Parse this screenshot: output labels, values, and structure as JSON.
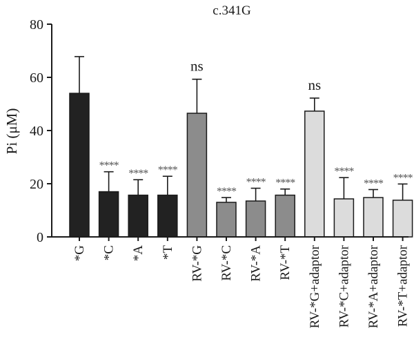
{
  "chart_data": {
    "type": "bar",
    "title": "c.341G",
    "ylabel": "Pi (μM)",
    "xlabel": "",
    "ylim": [
      0,
      80
    ],
    "yticks": [
      "0",
      "20",
      "40",
      "60",
      "80"
    ],
    "grid": false,
    "categories": [
      "*G",
      "*C",
      "*A",
      "*T",
      "RV-*G",
      "RV-*C",
      "RV-*A",
      "RV-*T",
      "RV-*G+adaptor",
      "RV-*C+adaptor",
      "RV-*A+adaptor",
      "RV-*T+adaptor"
    ],
    "values": [
      54,
      17,
      15.7,
      15.7,
      46.5,
      13,
      13.5,
      15.7,
      47.3,
      14.3,
      14.8,
      13.8
    ],
    "error_upper": [
      67.8,
      24.5,
      21.5,
      22.8,
      59.3,
      14.8,
      18.3,
      18.0,
      52.2,
      22.3,
      17.8,
      19.9
    ],
    "annotations": [
      "",
      "****",
      "****",
      "****",
      "ns",
      "****",
      "****",
      "****",
      "ns",
      "****",
      "****",
      "****"
    ],
    "colors": [
      "#222222",
      "#222222",
      "#222222",
      "#222222",
      "#8c8c8c",
      "#8c8c8c",
      "#8c8c8c",
      "#8c8c8c",
      "#dcdcdc",
      "#dcdcdc",
      "#dcdcdc",
      "#dcdcdc"
    ]
  }
}
